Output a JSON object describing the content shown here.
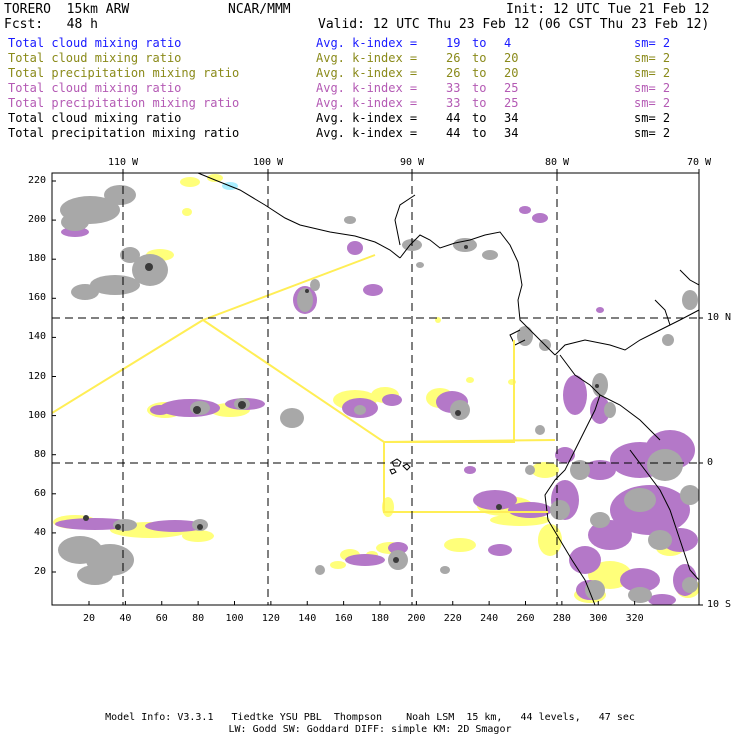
{
  "header": {
    "model": "TORERO  15km ARW",
    "org": "NCAR/MMM",
    "init": "Init: 12 UTC Tue 21 Feb 12",
    "fcst": "Fcst:   48 h",
    "valid": "Valid: 12 UTC Thu 23 Feb 12 (06 CST Thu 23 Feb 12)"
  },
  "legend": [
    {
      "field": "Total cloud mixing ratio",
      "stat": "Avg. k-index =",
      "a": "19",
      "to": "to",
      "b": "4",
      "sm": "sm= 2",
      "color": "#1a1aff"
    },
    {
      "field": "Total cloud mixing ratio",
      "stat": "Avg. k-index =",
      "a": "26",
      "to": "to",
      "b": "20",
      "sm": "sm= 2",
      "color": "#8a8a1a"
    },
    {
      "field": "Total precipitation mixing ratio",
      "stat": "Avg. k-index =",
      "a": "26",
      "to": "to",
      "b": "20",
      "sm": "sm= 2",
      "color": "#8a8a1a"
    },
    {
      "field": "Total cloud mixing ratio",
      "stat": "Avg. k-index =",
      "a": "33",
      "to": "to",
      "b": "25",
      "sm": "sm= 2",
      "color": "#b45ab4"
    },
    {
      "field": "Total precipitation mixing ratio",
      "stat": "Avg. k-index =",
      "a": "33",
      "to": "to",
      "b": "25",
      "sm": "sm= 2",
      "color": "#b45ab4"
    },
    {
      "field": "Total cloud mixing ratio",
      "stat": "Avg. k-index =",
      "a": "44",
      "to": "to",
      "b": "34",
      "sm": "sm= 2",
      "color": "#000000"
    },
    {
      "field": "Total precipitation mixing ratio",
      "stat": "Avg. k-index =",
      "a": "44",
      "to": "to",
      "b": "34",
      "sm": "sm= 2",
      "color": "#000000"
    }
  ],
  "top_ticks": [
    "110 W",
    "100 W",
    "90 W",
    "80 W",
    "70 W"
  ],
  "right_ticks": [
    "10 N",
    "0",
    "10 S"
  ],
  "left_ticks": [
    "220",
    "200",
    "180",
    "160",
    "140",
    "120",
    "100",
    "80",
    "60",
    "40",
    "20"
  ],
  "bottom_ticks": [
    "20",
    "40",
    "60",
    "80",
    "100",
    "120",
    "140",
    "160",
    "180",
    "200",
    "220",
    "240",
    "260",
    "280",
    "300",
    "320"
  ],
  "footer": {
    "line1": "Model Info: V3.3.1   Tiedtke YSU PBL  Thompson    Noah LSM  15 km,   44 levels,   47 sec",
    "line2": "LW: Godd SW: Goddard DIFF: simple KM: 2D Smagor"
  },
  "colors": {
    "yellow": "#ffff7a",
    "purple": "#b478c8",
    "gray": "#a8a8a8",
    "darkgray": "#707070",
    "domain": "#ffee55"
  }
}
